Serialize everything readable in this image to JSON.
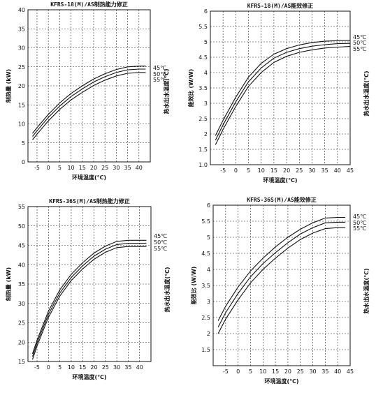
{
  "chart_data": [
    {
      "type": "line",
      "title": "KFRS-18(M)/AS制热能力修正",
      "xlabel": "环境温度(℃)",
      "ylabel": "制热量 (kW)",
      "right_label": "热水出水温度(℃)",
      "xlim": [
        -9,
        45
      ],
      "ylim": [
        0,
        40
      ],
      "xticks": [
        -5,
        0,
        5,
        10,
        15,
        20,
        25,
        30,
        35,
        40
      ],
      "yticks": [
        0,
        5,
        10,
        15,
        20,
        25,
        30,
        35,
        40
      ],
      "grid": true,
      "legend_position": "right",
      "series": [
        {
          "name": "45℃",
          "x": [
            -7,
            -5,
            0,
            5,
            10,
            15,
            20,
            25,
            30,
            35,
            40,
            43
          ],
          "y": [
            7.5,
            9,
            12.5,
            15.5,
            18,
            20,
            21.8,
            23.2,
            24.3,
            25,
            25.2,
            25.2
          ]
        },
        {
          "name": "50℃",
          "x": [
            -7,
            -5,
            0,
            5,
            10,
            15,
            20,
            25,
            30,
            35,
            40,
            43
          ],
          "y": [
            6.7,
            8.2,
            11.7,
            14.7,
            17.2,
            19.2,
            21,
            22.4,
            23.5,
            24.2,
            24.4,
            24.4
          ]
        },
        {
          "name": "55℃",
          "x": [
            -7,
            -5,
            0,
            5,
            10,
            15,
            20,
            25,
            30,
            35,
            40,
            43
          ],
          "y": [
            5.8,
            7.3,
            10.8,
            13.8,
            16.3,
            18.3,
            20.1,
            21.5,
            22.6,
            23.3,
            23.5,
            23.5
          ]
        }
      ]
    },
    {
      "type": "line",
      "title": "KFRS-18(M)/AS能效修正",
      "xlabel": "环境温度(℃)",
      "ylabel": "能效比 (W/W)",
      "right_label": "热水出水温度(℃)",
      "xlim": [
        -10,
        45
      ],
      "ylim": [
        1.0,
        6
      ],
      "xticks": [
        -5,
        0,
        5,
        10,
        15,
        20,
        25,
        30,
        35,
        40,
        45
      ],
      "yticks": [
        1.0,
        1.5,
        2,
        2.5,
        3,
        3.5,
        4,
        4.5,
        5,
        5.5,
        6
      ],
      "grid": true,
      "legend_position": "right",
      "series": [
        {
          "name": "45℃",
          "x": [
            -8,
            -5,
            0,
            5,
            10,
            15,
            20,
            25,
            30,
            35,
            40,
            45
          ],
          "y": [
            1.95,
            2.45,
            3.2,
            3.85,
            4.3,
            4.6,
            4.78,
            4.9,
            4.98,
            5.02,
            5.04,
            5.05
          ]
        },
        {
          "name": "50℃",
          "x": [
            -8,
            -5,
            0,
            5,
            10,
            15,
            20,
            25,
            30,
            35,
            40,
            45
          ],
          "y": [
            1.8,
            2.3,
            3.05,
            3.7,
            4.15,
            4.47,
            4.66,
            4.78,
            4.86,
            4.91,
            4.94,
            4.95
          ]
        },
        {
          "name": "55℃",
          "x": [
            -8,
            -5,
            0,
            5,
            10,
            15,
            20,
            25,
            30,
            35,
            40,
            45
          ],
          "y": [
            1.65,
            2.15,
            2.9,
            3.55,
            4.0,
            4.33,
            4.53,
            4.66,
            4.74,
            4.8,
            4.83,
            4.85
          ]
        }
      ]
    },
    {
      "type": "line",
      "title": "KFRS-36S(M)/AS制热能力修正",
      "xlabel": "环境温度(℃)",
      "ylabel": "制热量 (kW)",
      "right_label": "热水出水温度(℃)",
      "xlim": [
        -9,
        45
      ],
      "ylim": [
        15,
        55
      ],
      "xticks": [
        -5,
        0,
        5,
        10,
        15,
        20,
        25,
        30,
        35,
        40
      ],
      "yticks": [
        15,
        20,
        25,
        30,
        35,
        40,
        45,
        50,
        55
      ],
      "grid": true,
      "legend_position": "right",
      "series": [
        {
          "name": "45℃",
          "x": [
            -7,
            -5,
            0,
            5,
            10,
            15,
            20,
            25,
            30,
            35,
            40,
            43
          ],
          "y": [
            17,
            20.5,
            28,
            33.5,
            37.5,
            40.5,
            43,
            44.8,
            46,
            46.3,
            46.3,
            46.3
          ]
        },
        {
          "name": "50℃",
          "x": [
            -7,
            -5,
            0,
            5,
            10,
            15,
            20,
            25,
            30,
            35,
            40,
            43
          ],
          "y": [
            16.3,
            19.8,
            27.2,
            32.7,
            36.7,
            39.7,
            42.2,
            44,
            45.2,
            45.5,
            45.5,
            45.5
          ]
        },
        {
          "name": "55℃",
          "x": [
            -7,
            -5,
            0,
            5,
            10,
            15,
            20,
            25,
            30,
            35,
            40,
            43
          ],
          "y": [
            15.5,
            19,
            26.4,
            31.9,
            35.9,
            38.9,
            41.4,
            43.2,
            44.4,
            44.7,
            44.7,
            44.7
          ]
        }
      ]
    },
    {
      "type": "line",
      "title": "KFRS-36S(M)/AS能效修正",
      "xlabel": "环境温度(℃)",
      "ylabel": "能效比 (W/W)",
      "right_label": "热水出水温度(℃)",
      "xlim": [
        -10,
        45
      ],
      "ylim": [
        1,
        6
      ],
      "xticks": [
        -5,
        0,
        5,
        10,
        15,
        20,
        25,
        30,
        35,
        40,
        45
      ],
      "yticks": [
        1.5,
        2,
        2.5,
        3,
        3.5,
        4,
        4.5,
        5,
        5.5,
        6
      ],
      "grid": true,
      "legend_position": "right",
      "series": [
        {
          "name": "45℃",
          "x": [
            -8,
            -5,
            0,
            5,
            10,
            15,
            20,
            25,
            30,
            35,
            40,
            43
          ],
          "y": [
            2.4,
            2.85,
            3.45,
            3.95,
            4.35,
            4.7,
            5.0,
            5.25,
            5.45,
            5.6,
            5.62,
            5.62
          ]
        },
        {
          "name": "50℃",
          "x": [
            -8,
            -5,
            0,
            5,
            10,
            15,
            20,
            25,
            30,
            35,
            40,
            43
          ],
          "y": [
            2.2,
            2.65,
            3.25,
            3.77,
            4.18,
            4.52,
            4.83,
            5.1,
            5.3,
            5.45,
            5.47,
            5.47
          ]
        },
        {
          "name": "55℃",
          "x": [
            -8,
            -5,
            0,
            5,
            10,
            15,
            20,
            25,
            30,
            35,
            40,
            43
          ],
          "y": [
            2.0,
            2.45,
            3.05,
            3.58,
            4.0,
            4.35,
            4.66,
            4.93,
            5.13,
            5.27,
            5.3,
            5.3
          ]
        }
      ]
    }
  ]
}
